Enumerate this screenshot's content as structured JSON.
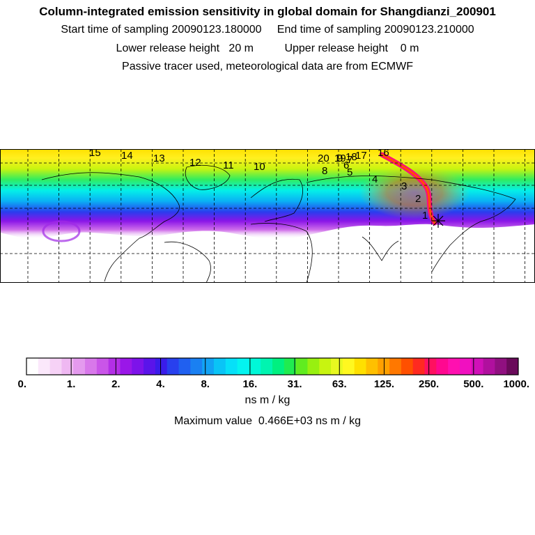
{
  "header": {
    "title": "Column-integrated emission sensitivity in global domain for Shangdianzi_200901",
    "line1": "Start time of sampling 20090123.180000     End time of sampling 20090123.210000",
    "line2": "Lower release height   20 m          Upper release height    0 m",
    "line3": "Passive tracer used, meteorological data are from ECMWF"
  },
  "map": {
    "day_labels": [
      "1",
      "2",
      "3",
      "4",
      "5",
      "6",
      "7",
      "8",
      "9",
      "10",
      "11",
      "12",
      "13",
      "14",
      "15",
      "16",
      "17",
      "18",
      "19",
      "20"
    ],
    "receptor_marker": "star-receptor-icon"
  },
  "colorbar": {
    "colors": [
      "#ffffff",
      "#fbe8fb",
      "#f6d2f6",
      "#efb8f2",
      "#e49aee",
      "#d878ea",
      "#c955e8",
      "#b32fe6",
      "#9a17e8",
      "#7d13ea",
      "#5a14ea",
      "#3a1cea",
      "#2840ee",
      "#2060f0",
      "#1a80f2",
      "#12a2f4",
      "#0ac4f6",
      "#06e0f8",
      "#04f4f0",
      "#00f8d8",
      "#00f4b0",
      "#00f080",
      "#20ec50",
      "#60ec20",
      "#98f010",
      "#c8f410",
      "#e8f820",
      "#fff820",
      "#ffe000",
      "#ffc000",
      "#ffa000",
      "#ff7800",
      "#ff5000",
      "#ff2a20",
      "#ff1060",
      "#ff0890",
      "#ff10b0",
      "#f010c0",
      "#d010b8",
      "#b0109e",
      "#901080",
      "#6a0a5a"
    ],
    "tick_labels": [
      "0.",
      "1.",
      "2.",
      "4.",
      "8.",
      "16.",
      "31.",
      "63.",
      "125.",
      "250.",
      "500.",
      "1000."
    ],
    "units": "ns m / kg"
  },
  "footer": {
    "max_value_text": "Maximum value  0.466E+03 ns m / kg"
  }
}
